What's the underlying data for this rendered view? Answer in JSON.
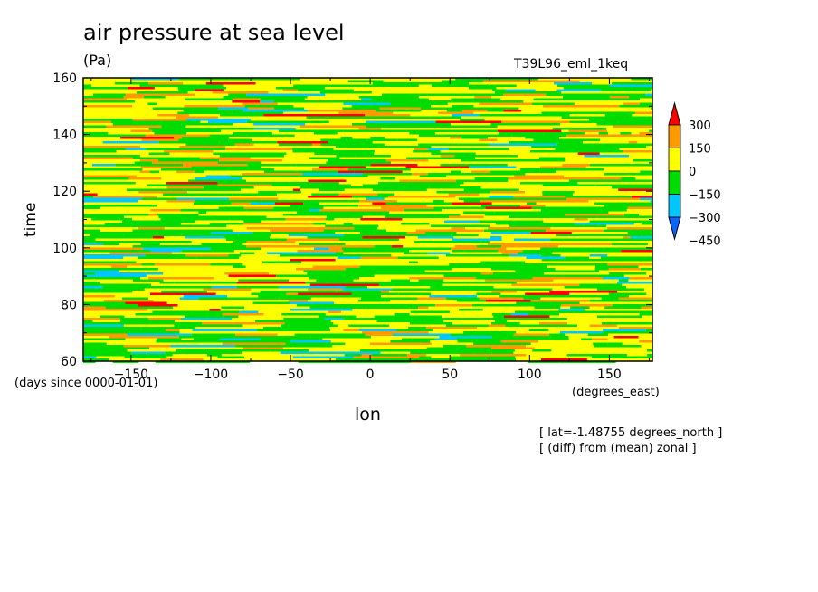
{
  "chart_data": {
    "type": "heatmap",
    "title": "air pressure at sea level",
    "units": "(Pa)",
    "run_label": "T39L96_eml_1keq",
    "xlabel": "lon",
    "xunit": "(degrees_east)",
    "ylabel": "time",
    "yunit": "(days since 0000-01-01)",
    "xlim": [
      -180,
      177
    ],
    "ylim": [
      60,
      160
    ],
    "x_ticks": [
      -150,
      -100,
      -50,
      0,
      50,
      100,
      150
    ],
    "y_ticks": [
      60,
      80,
      100,
      120,
      140,
      160
    ],
    "notes": [
      "[ lat=-1.48755 degrees_north ]",
      "[ (diff) from (mean) zonal ]"
    ],
    "colorbar": {
      "levels": [
        -450,
        -300,
        -150,
        0,
        150,
        300
      ],
      "labels": [
        "300",
        "150",
        "0",
        "−150",
        "−300",
        "−450"
      ],
      "colors": [
        "#0a64ff",
        "#00c8ff",
        "#00dc00",
        "#ffff00",
        "#ff9a00",
        "#ff0000"
      ],
      "extend": "both"
    },
    "dominant_bins": [
      "0 to 150",
      "-150 to 0"
    ]
  }
}
